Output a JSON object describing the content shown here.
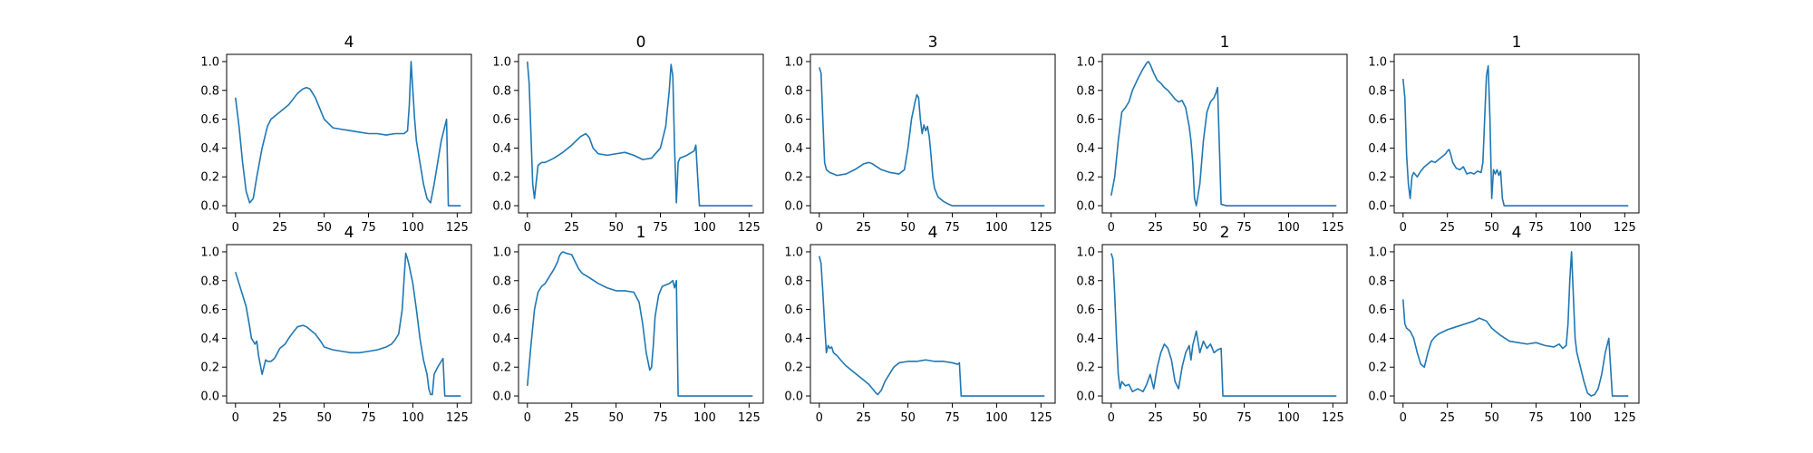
{
  "figure": {
    "line_color": "#1f77b4",
    "background": "#ffffff"
  },
  "chart_data": [
    {
      "type": "line",
      "title": "4",
      "xlabel": "",
      "ylabel": "",
      "xlim": [
        -5,
        133
      ],
      "ylim": [
        -0.05,
        1.05
      ],
      "xticks": [
        0,
        25,
        50,
        75,
        100,
        125
      ],
      "yticks": [
        0.0,
        0.2,
        0.4,
        0.6,
        0.8,
        1.0
      ],
      "grid": false,
      "series": [
        {
          "x": [
            0,
            2,
            4,
            6,
            8,
            10,
            12,
            15,
            18,
            20,
            25,
            30,
            35,
            38,
            40,
            42,
            45,
            50,
            55,
            60,
            65,
            70,
            75,
            80,
            85,
            90,
            95,
            97,
            98,
            99,
            100,
            101,
            102,
            104,
            106,
            108,
            110,
            112,
            114,
            116,
            118,
            119,
            120,
            122,
            127
          ],
          "y": [
            0.75,
            0.55,
            0.3,
            0.1,
            0.02,
            0.05,
            0.2,
            0.4,
            0.55,
            0.6,
            0.65,
            0.7,
            0.78,
            0.81,
            0.82,
            0.81,
            0.75,
            0.6,
            0.54,
            0.53,
            0.52,
            0.51,
            0.5,
            0.5,
            0.49,
            0.5,
            0.5,
            0.52,
            0.7,
            1.0,
            0.8,
            0.6,
            0.45,
            0.3,
            0.15,
            0.05,
            0.02,
            0.15,
            0.3,
            0.45,
            0.55,
            0.6,
            0.0,
            0.0,
            0.0
          ]
        }
      ]
    },
    {
      "type": "line",
      "title": "0",
      "xlabel": "",
      "ylabel": "",
      "xlim": [
        -5,
        133
      ],
      "ylim": [
        -0.05,
        1.05
      ],
      "xticks": [
        0,
        25,
        50,
        75,
        100,
        125
      ],
      "yticks": [
        0.0,
        0.2,
        0.4,
        0.6,
        0.8,
        1.0
      ],
      "grid": false,
      "series": [
        {
          "x": [
            0,
            1,
            2,
            3,
            4,
            6,
            8,
            10,
            15,
            20,
            25,
            30,
            33,
            35,
            37,
            40,
            45,
            50,
            55,
            60,
            65,
            70,
            75,
            78,
            80,
            81,
            82,
            83,
            84,
            85,
            86,
            88,
            90,
            94,
            95,
            96,
            97,
            100,
            110,
            127
          ],
          "y": [
            1.0,
            0.85,
            0.5,
            0.15,
            0.05,
            0.28,
            0.3,
            0.3,
            0.33,
            0.37,
            0.42,
            0.48,
            0.5,
            0.47,
            0.4,
            0.36,
            0.35,
            0.36,
            0.37,
            0.35,
            0.32,
            0.33,
            0.4,
            0.55,
            0.8,
            0.98,
            0.9,
            0.4,
            0.02,
            0.3,
            0.33,
            0.34,
            0.35,
            0.38,
            0.42,
            0.2,
            0.0,
            0.0,
            0.0,
            0.0
          ]
        }
      ]
    },
    {
      "type": "line",
      "title": "3",
      "xlabel": "",
      "ylabel": "",
      "xlim": [
        -5,
        133
      ],
      "ylim": [
        -0.05,
        1.05
      ],
      "xticks": [
        0,
        25,
        50,
        75,
        100,
        125
      ],
      "yticks": [
        0.0,
        0.2,
        0.4,
        0.6,
        0.8,
        1.0
      ],
      "grid": false,
      "series": [
        {
          "x": [
            0,
            1,
            2,
            3,
            4,
            6,
            8,
            10,
            15,
            20,
            25,
            28,
            30,
            35,
            40,
            45,
            48,
            50,
            52,
            54,
            55,
            56,
            57,
            58,
            59,
            60,
            61,
            62,
            63,
            64,
            65,
            67,
            70,
            73,
            75,
            80,
            90,
            100,
            110,
            127
          ],
          "y": [
            0.96,
            0.92,
            0.6,
            0.3,
            0.25,
            0.23,
            0.22,
            0.21,
            0.22,
            0.25,
            0.29,
            0.3,
            0.29,
            0.25,
            0.23,
            0.22,
            0.25,
            0.4,
            0.6,
            0.72,
            0.77,
            0.75,
            0.6,
            0.5,
            0.56,
            0.52,
            0.55,
            0.48,
            0.35,
            0.2,
            0.12,
            0.06,
            0.03,
            0.01,
            0.0,
            0.0,
            0.0,
            0.0,
            0.0,
            0.0
          ]
        }
      ]
    },
    {
      "type": "line",
      "title": "1",
      "xlabel": "",
      "ylabel": "",
      "xlim": [
        -5,
        133
      ],
      "ylim": [
        -0.05,
        1.05
      ],
      "xticks": [
        0,
        25,
        50,
        75,
        100,
        125
      ],
      "yticks": [
        0.0,
        0.2,
        0.4,
        0.6,
        0.8,
        1.0
      ],
      "grid": false,
      "series": [
        {
          "x": [
            0,
            2,
            4,
            6,
            8,
            10,
            12,
            15,
            18,
            20,
            21,
            22,
            24,
            26,
            28,
            30,
            32,
            34,
            36,
            38,
            40,
            42,
            44,
            45,
            46,
            47,
            48,
            50,
            52,
            54,
            56,
            58,
            59,
            60,
            62,
            65,
            75,
            100,
            127
          ],
          "y": [
            0.07,
            0.2,
            0.45,
            0.65,
            0.68,
            0.72,
            0.8,
            0.88,
            0.95,
            0.99,
            1.0,
            0.98,
            0.92,
            0.87,
            0.85,
            0.82,
            0.8,
            0.77,
            0.74,
            0.72,
            0.73,
            0.68,
            0.55,
            0.45,
            0.3,
            0.05,
            0.0,
            0.15,
            0.45,
            0.65,
            0.72,
            0.75,
            0.78,
            0.82,
            0.01,
            0.0,
            0.0,
            0.0,
            0.0
          ]
        }
      ]
    },
    {
      "type": "line",
      "title": "1",
      "xlabel": "",
      "ylabel": "",
      "xlim": [
        -5,
        133
      ],
      "ylim": [
        -0.05,
        1.05
      ],
      "xticks": [
        0,
        25,
        50,
        75,
        100,
        125
      ],
      "yticks": [
        0.0,
        0.2,
        0.4,
        0.6,
        0.8,
        1.0
      ],
      "grid": false,
      "series": [
        {
          "x": [
            0,
            1,
            2,
            3,
            4,
            5,
            6,
            8,
            10,
            12,
            14,
            16,
            18,
            20,
            22,
            24,
            25,
            26,
            27,
            28,
            30,
            32,
            34,
            36,
            38,
            40,
            42,
            44,
            45,
            46,
            47,
            48,
            49,
            50,
            51,
            52,
            53,
            54,
            55,
            56,
            57,
            60,
            75,
            100,
            127
          ],
          "y": [
            0.88,
            0.75,
            0.35,
            0.15,
            0.05,
            0.2,
            0.23,
            0.2,
            0.24,
            0.27,
            0.29,
            0.31,
            0.3,
            0.32,
            0.34,
            0.36,
            0.38,
            0.39,
            0.35,
            0.3,
            0.26,
            0.25,
            0.27,
            0.22,
            0.23,
            0.22,
            0.24,
            0.23,
            0.3,
            0.6,
            0.9,
            0.97,
            0.6,
            0.05,
            0.25,
            0.22,
            0.25,
            0.21,
            0.24,
            0.05,
            0.0,
            0.0,
            0.0,
            0.0,
            0.0
          ]
        }
      ]
    },
    {
      "type": "line",
      "title": "4",
      "xlabel": "",
      "ylabel": "",
      "xlim": [
        -5,
        133
      ],
      "ylim": [
        -0.05,
        1.05
      ],
      "xticks": [
        0,
        25,
        50,
        75,
        100,
        125
      ],
      "yticks": [
        0.0,
        0.2,
        0.4,
        0.6,
        0.8,
        1.0
      ],
      "grid": false,
      "series": [
        {
          "x": [
            0,
            2,
            4,
            6,
            8,
            9,
            10,
            11,
            12,
            13,
            15,
            17,
            18,
            20,
            22,
            25,
            28,
            30,
            33,
            35,
            38,
            40,
            43,
            45,
            48,
            50,
            55,
            60,
            65,
            70,
            75,
            80,
            85,
            88,
            90,
            92,
            94,
            95,
            96,
            97,
            98,
            100,
            102,
            104,
            106,
            108,
            109,
            110,
            111,
            112,
            114,
            116,
            117,
            118,
            120,
            127
          ],
          "y": [
            0.86,
            0.78,
            0.7,
            0.62,
            0.48,
            0.4,
            0.38,
            0.36,
            0.38,
            0.28,
            0.15,
            0.25,
            0.24,
            0.24,
            0.26,
            0.33,
            0.36,
            0.4,
            0.45,
            0.48,
            0.49,
            0.48,
            0.45,
            0.43,
            0.38,
            0.34,
            0.32,
            0.31,
            0.3,
            0.3,
            0.31,
            0.32,
            0.34,
            0.36,
            0.39,
            0.43,
            0.6,
            0.8,
            0.99,
            0.95,
            0.9,
            0.78,
            0.6,
            0.4,
            0.25,
            0.15,
            0.05,
            0.01,
            0.01,
            0.15,
            0.2,
            0.24,
            0.26,
            0.0,
            0.0,
            0.0
          ]
        }
      ]
    },
    {
      "type": "line",
      "title": "1",
      "xlabel": "",
      "ylabel": "",
      "xlim": [
        -5,
        133
      ],
      "ylim": [
        -0.05,
        1.05
      ],
      "xticks": [
        0,
        25,
        50,
        75,
        100,
        125
      ],
      "yticks": [
        0.0,
        0.2,
        0.4,
        0.6,
        0.8,
        1.0
      ],
      "grid": false,
      "series": [
        {
          "x": [
            0,
            2,
            4,
            6,
            8,
            10,
            12,
            15,
            17,
            18,
            19,
            20,
            22,
            25,
            27,
            29,
            31,
            35,
            40,
            45,
            50,
            55,
            60,
            63,
            65,
            67,
            69,
            70,
            71,
            72,
            74,
            76,
            78,
            80,
            82,
            83,
            84,
            85,
            90,
            100,
            127
          ],
          "y": [
            0.07,
            0.35,
            0.6,
            0.72,
            0.76,
            0.78,
            0.82,
            0.88,
            0.93,
            0.97,
            0.99,
            1.0,
            0.99,
            0.98,
            0.93,
            0.88,
            0.85,
            0.82,
            0.78,
            0.75,
            0.73,
            0.73,
            0.72,
            0.65,
            0.5,
            0.3,
            0.18,
            0.2,
            0.35,
            0.55,
            0.7,
            0.76,
            0.77,
            0.78,
            0.8,
            0.75,
            0.8,
            0.0,
            0.0,
            0.0,
            0.0
          ]
        }
      ]
    },
    {
      "type": "line",
      "title": "4",
      "xlabel": "",
      "ylabel": "",
      "xlim": [
        -5,
        133
      ],
      "ylim": [
        -0.05,
        1.05
      ],
      "xticks": [
        0,
        25,
        50,
        75,
        100,
        125
      ],
      "yticks": [
        0.0,
        0.2,
        0.4,
        0.6,
        0.8,
        1.0
      ],
      "grid": false,
      "series": [
        {
          "x": [
            0,
            1,
            2,
            3,
            4,
            5,
            6,
            7,
            8,
            10,
            12,
            15,
            20,
            25,
            28,
            30,
            32,
            33,
            35,
            37,
            40,
            42,
            45,
            50,
            55,
            60,
            65,
            70,
            75,
            78,
            79,
            80,
            85,
            100,
            127
          ],
          "y": [
            0.97,
            0.92,
            0.72,
            0.5,
            0.3,
            0.35,
            0.33,
            0.34,
            0.3,
            0.28,
            0.25,
            0.21,
            0.16,
            0.11,
            0.08,
            0.05,
            0.02,
            0.01,
            0.04,
            0.1,
            0.16,
            0.2,
            0.23,
            0.24,
            0.24,
            0.25,
            0.24,
            0.24,
            0.23,
            0.22,
            0.23,
            0.0,
            0.0,
            0.0,
            0.0
          ]
        }
      ]
    },
    {
      "type": "line",
      "title": "2",
      "xlabel": "",
      "ylabel": "",
      "xlim": [
        -5,
        133
      ],
      "ylim": [
        -0.05,
        1.05
      ],
      "xticks": [
        0,
        25,
        50,
        75,
        100,
        125
      ],
      "yticks": [
        0.0,
        0.2,
        0.4,
        0.6,
        0.8,
        1.0
      ],
      "grid": false,
      "series": [
        {
          "x": [
            0,
            1,
            2,
            3,
            4,
            5,
            6,
            8,
            10,
            12,
            15,
            18,
            20,
            22,
            24,
            26,
            28,
            30,
            32,
            34,
            36,
            38,
            40,
            42,
            44,
            45,
            46,
            48,
            50,
            52,
            54,
            56,
            58,
            60,
            62,
            63,
            64,
            65,
            70,
            100,
            127
          ],
          "y": [
            0.99,
            0.95,
            0.7,
            0.4,
            0.15,
            0.05,
            0.1,
            0.07,
            0.08,
            0.03,
            0.05,
            0.03,
            0.08,
            0.15,
            0.05,
            0.2,
            0.3,
            0.36,
            0.33,
            0.25,
            0.1,
            0.05,
            0.2,
            0.3,
            0.35,
            0.25,
            0.35,
            0.45,
            0.3,
            0.38,
            0.33,
            0.36,
            0.3,
            0.32,
            0.33,
            0.0,
            0.0,
            0.0,
            0.0,
            0.0,
            0.0
          ]
        }
      ]
    },
    {
      "type": "line",
      "title": "4",
      "xlabel": "",
      "ylabel": "",
      "xlim": [
        -5,
        133
      ],
      "ylim": [
        -0.05,
        1.05
      ],
      "xticks": [
        0,
        25,
        50,
        75,
        100,
        125
      ],
      "yticks": [
        0.0,
        0.2,
        0.4,
        0.6,
        0.8,
        1.0
      ],
      "grid": false,
      "series": [
        {
          "x": [
            0,
            1,
            2,
            4,
            6,
            8,
            10,
            12,
            14,
            16,
            18,
            20,
            25,
            30,
            35,
            40,
            43,
            45,
            47,
            50,
            55,
            60,
            65,
            70,
            75,
            80,
            85,
            88,
            90,
            92,
            93,
            94,
            95,
            96,
            97,
            98,
            100,
            102,
            104,
            106,
            108,
            110,
            112,
            114,
            116,
            117,
            118,
            120,
            127
          ],
          "y": [
            0.67,
            0.5,
            0.47,
            0.45,
            0.4,
            0.3,
            0.22,
            0.2,
            0.3,
            0.38,
            0.41,
            0.43,
            0.46,
            0.48,
            0.5,
            0.52,
            0.54,
            0.53,
            0.52,
            0.47,
            0.42,
            0.38,
            0.37,
            0.36,
            0.37,
            0.35,
            0.34,
            0.36,
            0.33,
            0.35,
            0.5,
            0.8,
            1.0,
            0.7,
            0.4,
            0.3,
            0.2,
            0.1,
            0.02,
            0.0,
            0.01,
            0.05,
            0.15,
            0.3,
            0.4,
            0.2,
            0.0,
            0.0,
            0.0
          ]
        }
      ]
    }
  ]
}
